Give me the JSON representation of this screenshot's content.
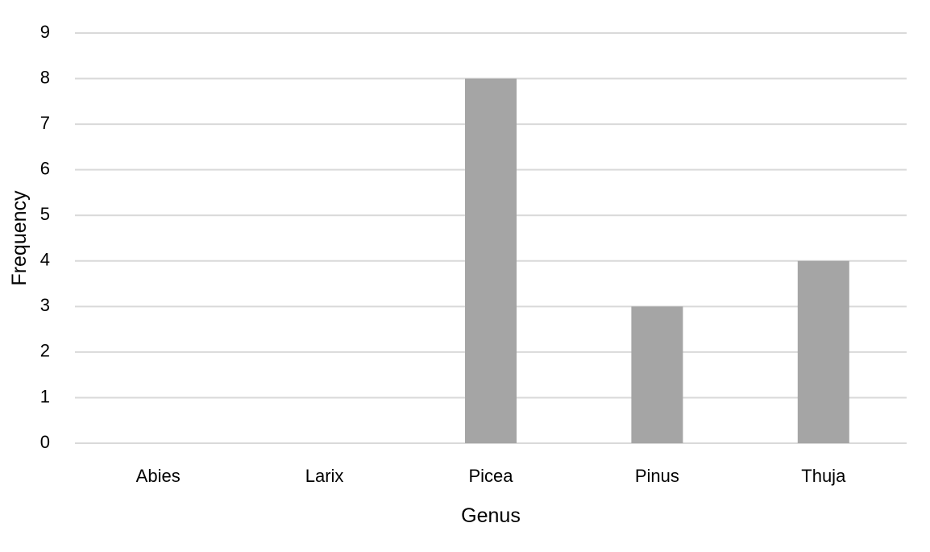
{
  "chart_data": {
    "type": "bar",
    "categories": [
      "Abies",
      "Larix",
      "Picea",
      "Pinus",
      "Thuja"
    ],
    "values": [
      0,
      0,
      8,
      3,
      4
    ],
    "title": "",
    "xlabel": "Genus",
    "ylabel": "Frequency",
    "ylim": [
      0,
      9
    ],
    "yticks": [
      0,
      1,
      2,
      3,
      4,
      5,
      6,
      7,
      8,
      9
    ],
    "grid": true,
    "legend": "none",
    "bar_color": "#a5a5a5",
    "grid_color": "#d9d9d9"
  }
}
